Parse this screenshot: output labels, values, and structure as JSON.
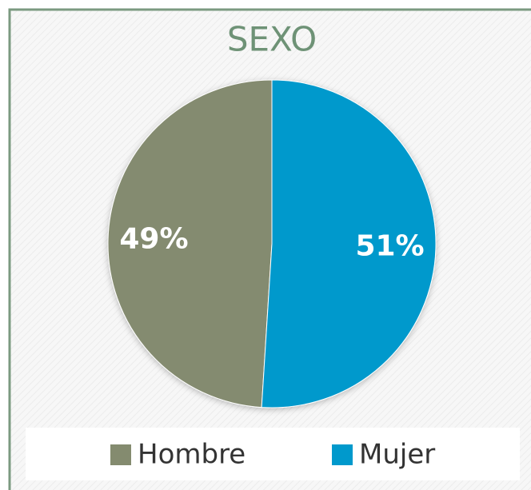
{
  "chart_data": {
    "type": "pie",
    "title": "SEXO",
    "categories": [
      "Hombre",
      "Mujer"
    ],
    "values": [
      49,
      51
    ],
    "value_labels": [
      "49%",
      "51%"
    ],
    "colors": [
      "#848b6f",
      "#0099cc"
    ],
    "legend": "bottom"
  }
}
